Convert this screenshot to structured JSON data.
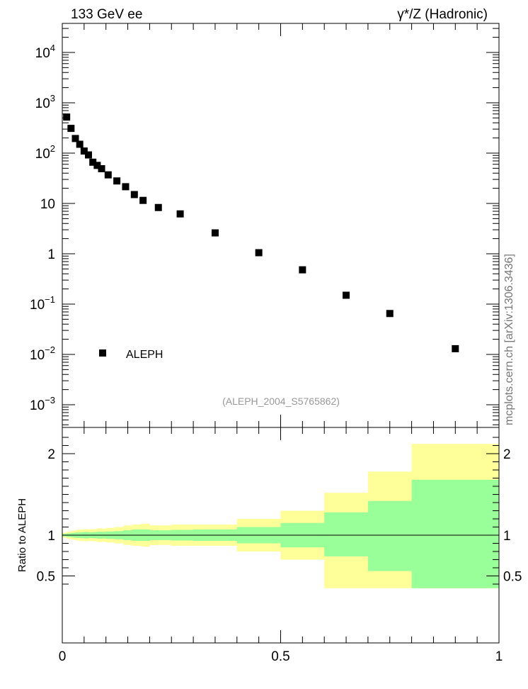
{
  "header": {
    "left": "133 GeV ee",
    "right": "γ*/Z (Hadronic)"
  },
  "side_label": "mcplots.cern.ch [arXiv:1306.3436]",
  "analysis_tag": "(ALEPH_2004_S5765862)",
  "chart_data": [
    {
      "type": "scatter",
      "yscale": "log",
      "xlim": [
        0,
        1
      ],
      "ylim": [
        0.0003,
        35000
      ],
      "ytick_labels": [
        {
          "value": 0.001,
          "base": "10",
          "exp": "−3"
        },
        {
          "value": 0.01,
          "base": "10",
          "exp": "−2"
        },
        {
          "value": 0.1,
          "base": "10",
          "exp": "−1"
        },
        {
          "value": 1,
          "base": "1",
          "exp": ""
        },
        {
          "value": 10,
          "base": "10",
          "exp": ""
        },
        {
          "value": 100,
          "base": "10",
          "exp": "2"
        },
        {
          "value": 1000,
          "base": "10",
          "exp": "3"
        },
        {
          "value": 10000,
          "base": "10",
          "exp": "4"
        }
      ],
      "legend": {
        "label": "ALEPH",
        "placement": "lower-left"
      },
      "series": [
        {
          "name": "ALEPH",
          "color": "#000000",
          "points": [
            {
              "x": 0.01,
              "y": 520
            },
            {
              "x": 0.02,
              "y": 310
            },
            {
              "x": 0.03,
              "y": 195
            },
            {
              "x": 0.04,
              "y": 150
            },
            {
              "x": 0.05,
              "y": 110
            },
            {
              "x": 0.06,
              "y": 92
            },
            {
              "x": 0.07,
              "y": 66
            },
            {
              "x": 0.08,
              "y": 57
            },
            {
              "x": 0.09,
              "y": 49
            },
            {
              "x": 0.105,
              "y": 37
            },
            {
              "x": 0.125,
              "y": 28
            },
            {
              "x": 0.145,
              "y": 21.5
            },
            {
              "x": 0.165,
              "y": 15
            },
            {
              "x": 0.185,
              "y": 11.5
            },
            {
              "x": 0.22,
              "y": 8.3
            },
            {
              "x": 0.27,
              "y": 6.2
            },
            {
              "x": 0.35,
              "y": 2.6
            },
            {
              "x": 0.45,
              "y": 1.05
            },
            {
              "x": 0.55,
              "y": 0.48
            },
            {
              "x": 0.65,
              "y": 0.15
            },
            {
              "x": 0.75,
              "y": 0.065
            },
            {
              "x": 0.9,
              "y": 0.013
            }
          ]
        }
      ]
    },
    {
      "type": "area",
      "ylabel": "Ratio to ALEPH",
      "xlim": [
        0,
        1
      ],
      "ylim": [
        0.35,
        2.3
      ],
      "xtick_labels": [
        "0",
        "0.5",
        "1"
      ],
      "ytick_labels": [
        "0.5",
        "1",
        "2"
      ],
      "reference_line": 1,
      "bands": {
        "outer_color": "#ffff99",
        "inner_color": "#99ff99",
        "bins": [
          {
            "x0": 0.0,
            "x1": 0.01,
            "outer_lo": 0.97,
            "outer_hi": 1.03,
            "inner_lo": 0.985,
            "inner_hi": 1.015
          },
          {
            "x0": 0.01,
            "x1": 0.02,
            "outer_lo": 0.955,
            "outer_hi": 1.045,
            "inner_lo": 0.978,
            "inner_hi": 1.022
          },
          {
            "x0": 0.02,
            "x1": 0.03,
            "outer_lo": 0.945,
            "outer_hi": 1.055,
            "inner_lo": 0.972,
            "inner_hi": 1.028
          },
          {
            "x0": 0.03,
            "x1": 0.04,
            "outer_lo": 0.935,
            "outer_hi": 1.065,
            "inner_lo": 0.967,
            "inner_hi": 1.033
          },
          {
            "x0": 0.04,
            "x1": 0.05,
            "outer_lo": 0.93,
            "outer_hi": 1.07,
            "inner_lo": 0.964,
            "inner_hi": 1.036
          },
          {
            "x0": 0.05,
            "x1": 0.06,
            "outer_lo": 0.925,
            "outer_hi": 1.075,
            "inner_lo": 0.96,
            "inner_hi": 1.04
          },
          {
            "x0": 0.06,
            "x1": 0.07,
            "outer_lo": 0.93,
            "outer_hi": 1.07,
            "inner_lo": 0.965,
            "inner_hi": 1.035
          },
          {
            "x0": 0.07,
            "x1": 0.08,
            "outer_lo": 0.925,
            "outer_hi": 1.075,
            "inner_lo": 0.962,
            "inner_hi": 1.038
          },
          {
            "x0": 0.08,
            "x1": 0.09,
            "outer_lo": 0.915,
            "outer_hi": 1.085,
            "inner_lo": 0.957,
            "inner_hi": 1.043
          },
          {
            "x0": 0.09,
            "x1": 0.1,
            "outer_lo": 0.92,
            "outer_hi": 1.08,
            "inner_lo": 0.96,
            "inner_hi": 1.04
          },
          {
            "x0": 0.1,
            "x1": 0.12,
            "outer_lo": 0.91,
            "outer_hi": 1.09,
            "inner_lo": 0.955,
            "inner_hi": 1.045
          },
          {
            "x0": 0.12,
            "x1": 0.14,
            "outer_lo": 0.9,
            "outer_hi": 1.1,
            "inner_lo": 0.95,
            "inner_hi": 1.05
          },
          {
            "x0": 0.14,
            "x1": 0.16,
            "outer_lo": 0.88,
            "outer_hi": 1.12,
            "inner_lo": 0.94,
            "inner_hi": 1.06
          },
          {
            "x0": 0.16,
            "x1": 0.18,
            "outer_lo": 0.87,
            "outer_hi": 1.13,
            "inner_lo": 0.93,
            "inner_hi": 1.07
          },
          {
            "x0": 0.18,
            "x1": 0.2,
            "outer_lo": 0.86,
            "outer_hi": 1.14,
            "inner_lo": 0.93,
            "inner_hi": 1.07
          },
          {
            "x0": 0.2,
            "x1": 0.25,
            "outer_lo": 0.88,
            "outer_hi": 1.12,
            "inner_lo": 0.94,
            "inner_hi": 1.06
          },
          {
            "x0": 0.25,
            "x1": 0.3,
            "outer_lo": 0.87,
            "outer_hi": 1.13,
            "inner_lo": 0.935,
            "inner_hi": 1.065
          },
          {
            "x0": 0.3,
            "x1": 0.4,
            "outer_lo": 0.87,
            "outer_hi": 1.13,
            "inner_lo": 0.93,
            "inner_hi": 1.07
          },
          {
            "x0": 0.4,
            "x1": 0.5,
            "outer_lo": 0.8,
            "outer_hi": 1.2,
            "inner_lo": 0.9,
            "inner_hi": 1.1
          },
          {
            "x0": 0.5,
            "x1": 0.6,
            "outer_lo": 0.7,
            "outer_hi": 1.3,
            "inner_lo": 0.85,
            "inner_hi": 1.15
          },
          {
            "x0": 0.6,
            "x1": 0.7,
            "outer_lo": 0.35,
            "outer_hi": 1.52,
            "inner_lo": 0.74,
            "inner_hi": 1.28
          },
          {
            "x0": 0.7,
            "x1": 0.8,
            "outer_lo": 0.35,
            "outer_hi": 1.78,
            "inner_lo": 0.56,
            "inner_hi": 1.42
          },
          {
            "x0": 0.8,
            "x1": 1.0,
            "outer_lo": 0.35,
            "outer_hi": 2.12,
            "inner_lo": 0.35,
            "inner_hi": 1.68
          }
        ]
      }
    }
  ]
}
